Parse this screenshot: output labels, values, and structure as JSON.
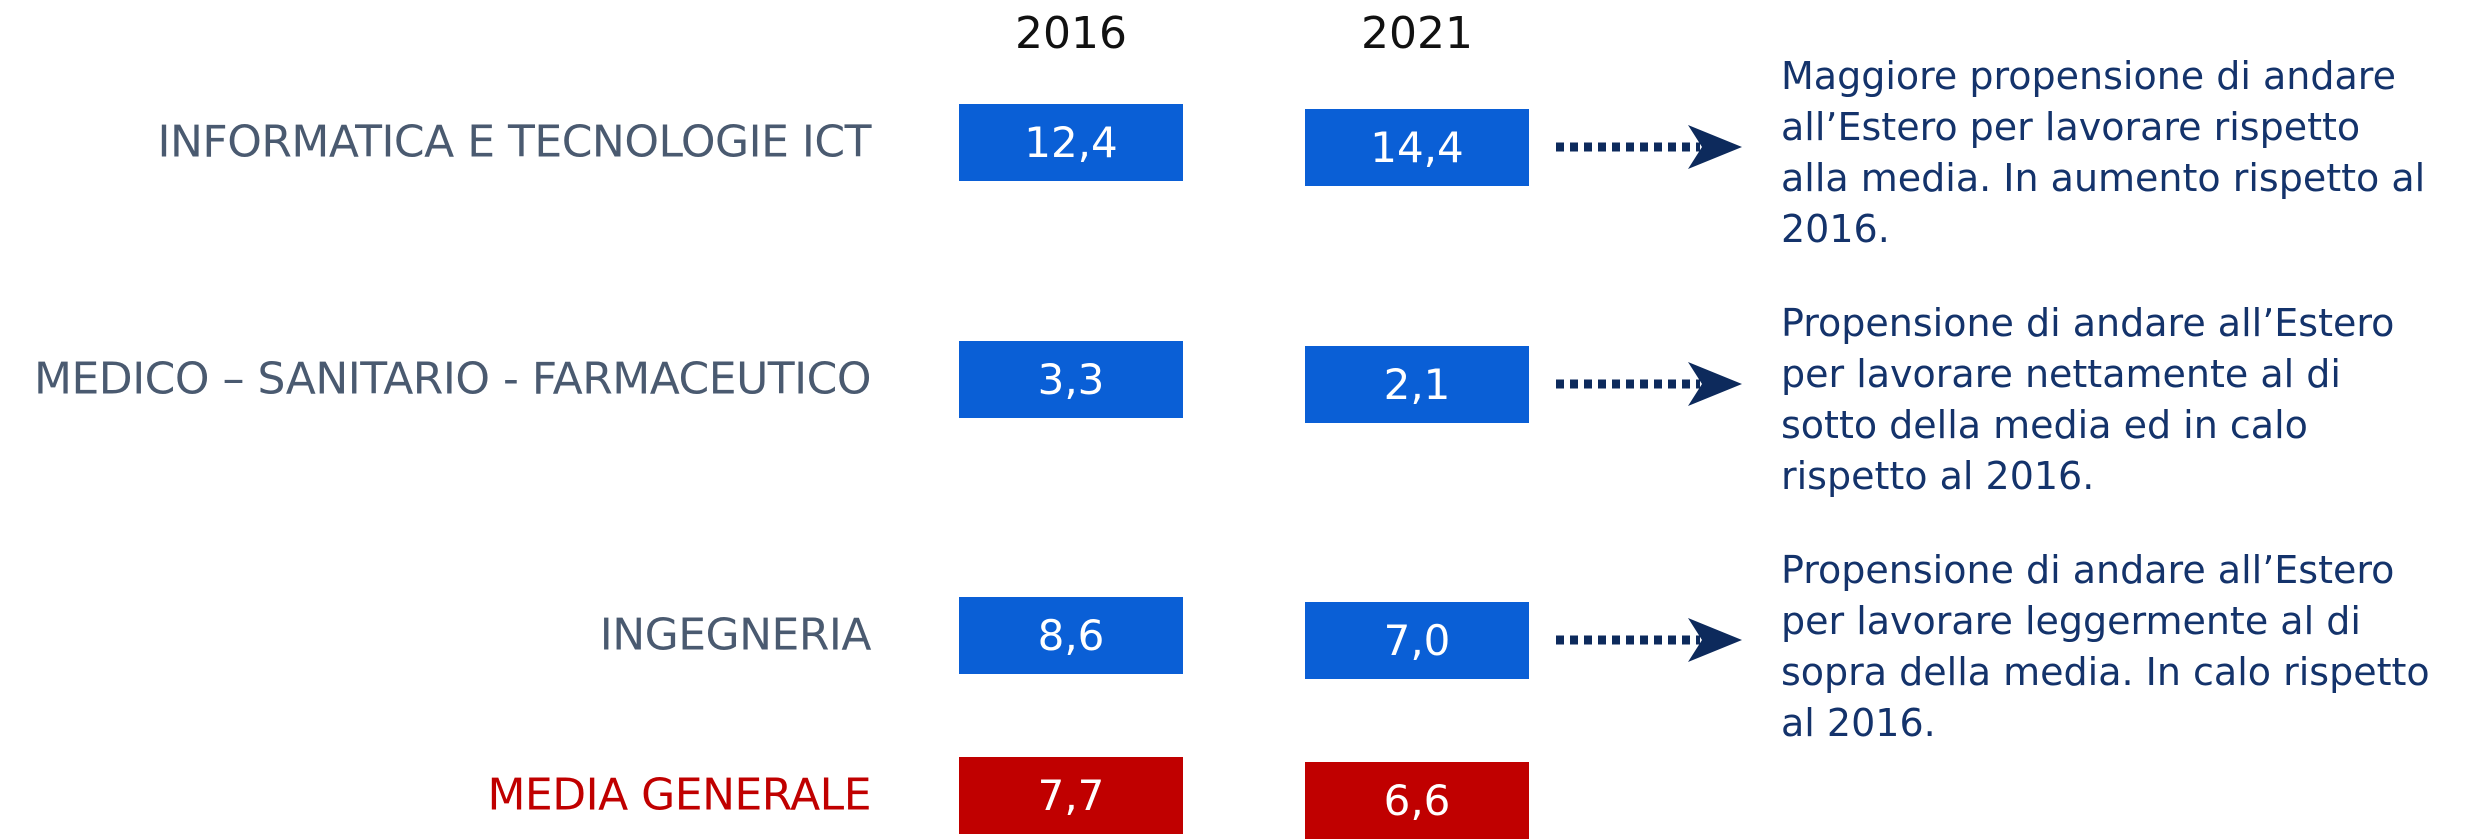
{
  "table": {
    "columns": [
      "2016",
      "2021"
    ],
    "rows": [
      {
        "label": "INFORMATICA E TECNOLOGIE ICT",
        "values": [
          "12,4",
          "14,4"
        ],
        "note": [
          "Maggiore propensione di andare",
          "all’Estero per lavorare rispetto",
          "alla media. In aumento rispetto al",
          "2016."
        ]
      },
      {
        "label": "MEDICO – SANITARIO - FARMACEUTICO",
        "values": [
          "3,3",
          "2,1"
        ],
        "note": [
          "Propensione di andare all’Estero",
          "per lavorare nettamente al di",
          "sotto della media ed in calo",
          "rispetto al 2016."
        ]
      },
      {
        "label": "INGEGNERIA",
        "values": [
          "8,6",
          "7,0"
        ],
        "note": [
          "Propensione di andare all’Estero",
          "per lavorare leggermente al di",
          "sopra della media. In calo rispetto",
          "al 2016."
        ]
      },
      {
        "label": "MEDIA GENERALE",
        "values": [
          "7,7",
          "6,6"
        ]
      }
    ]
  }
}
